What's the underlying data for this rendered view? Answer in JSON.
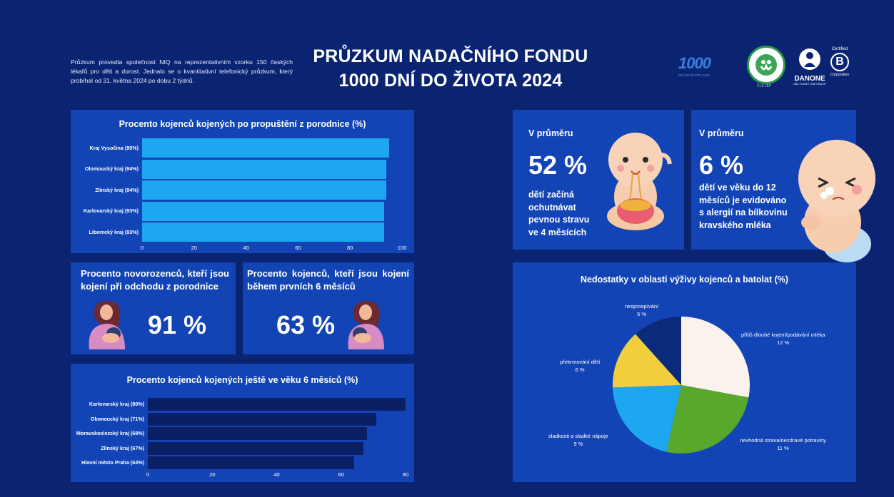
{
  "header": {
    "intro": "Průzkum provedla společnost NIQ na reprezentativním vzorku 150 českých lékařů pro děti a dorost. Jednalo se o kvantitativní telefonický průzkum, který probíhal od 31. května 2024 po dobu 2 týdnů.",
    "title_line1": "PRŮZKUM NADAČNÍHO FONDU",
    "title_line2": "1000 DNÍ DO ŽIVOTA 2024"
  },
  "logos": {
    "fund_text": "1000",
    "fund_sub": "DNÍ DO ŽIVOTA 2024",
    "cls_text": "ČLS JEP",
    "danone_text": "DANONE",
    "danone_sub": "ONE PLANET. ONE HEALTH",
    "bcorp_top": "Certified",
    "bcorp_bottom": "Corporation",
    "bcorp_letter": "B"
  },
  "chart_data": [
    {
      "id": "discharge",
      "type": "bar",
      "orientation": "horizontal",
      "title": "Procento kojenců kojených po propuštění z porodnice (%)",
      "categories": [
        "Kraj Vysočina (95%)",
        "Olomoucký kraj (94%)",
        "Zlínský kraj (94%)",
        "Karlovarský kraj (93%)",
        "Liberecký kraj (93%)"
      ],
      "values": [
        95,
        94,
        94,
        93,
        93
      ],
      "xlim": [
        0,
        100
      ],
      "ticks": [
        "0",
        "20",
        "40",
        "60",
        "80",
        "100"
      ],
      "bar_color": "#1da7f0"
    },
    {
      "id": "six_months",
      "type": "bar",
      "orientation": "horizontal",
      "title": "Procento kojenců kojených ještě ve věku 6 měsíců (%)",
      "categories": [
        "Karlovarský kraj (80%)",
        "Olomoucký kraj (71%)",
        "Moravskoslezský kraj (68%)",
        "Zlínský kraj (67%)",
        "Hlavní město Praha (64%)"
      ],
      "values": [
        80,
        71,
        68,
        67,
        64
      ],
      "xlim": [
        0,
        80
      ],
      "ticks": [
        "0",
        "20",
        "40",
        "60",
        "80"
      ],
      "bar_color": "#0b1f66"
    },
    {
      "id": "deficits",
      "type": "pie",
      "title": "Nedostatky v oblasti výživy kojenců a batolat (%)",
      "slices": [
        {
          "label": "příliš dlouhé kojení/podávání mléka",
          "value": 12,
          "display": "12 %",
          "color": "#fbf2ee"
        },
        {
          "label": "nevhodná strava/nezdravé potraviny",
          "value": 11,
          "display": "11 %",
          "color": "#57a82b"
        },
        {
          "label": "sladkosti a sladké nápoje",
          "value": 9,
          "display": "9 %",
          "color": "#1da7f0"
        },
        {
          "label": "překrmování dětí",
          "value": 6,
          "display": "6 %",
          "color": "#f1cf3c"
        },
        {
          "label": "nesprospívání",
          "value": 5,
          "display": "5 %",
          "color": "#0b2a7a"
        }
      ]
    }
  ],
  "stats": {
    "newborn": {
      "label": "Procento novorozenců, kteří jsou kojení při odchodu z porodnice",
      "value": "91 %"
    },
    "six_month": {
      "label": "Procento kojenců, kteří jsou kojení během prvních 6 měsíců",
      "value": "63 %"
    },
    "solid": {
      "label": "V průměru",
      "value": "52 %",
      "desc": "dětí začíná ochutnávat pevnou stravu ve 4 měsících"
    },
    "allergy": {
      "label": "V průměru",
      "value": "6 %",
      "desc": "dětí ve věku do 12 měsíců je evidováno s alergií na bílkovinu kravského mléka"
    }
  },
  "colors": {
    "background": "#0a2472",
    "panel": "#1244b6"
  }
}
